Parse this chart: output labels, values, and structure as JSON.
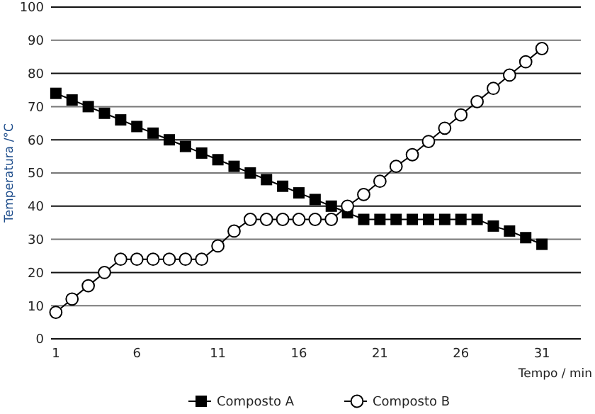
{
  "chart_data": {
    "type": "line",
    "xlabel": "Tempo / min",
    "ylabel": "Temperatura /°C",
    "x": [
      1,
      2,
      3,
      4,
      5,
      6,
      7,
      8,
      9,
      10,
      11,
      12,
      13,
      14,
      15,
      16,
      17,
      18,
      19,
      20,
      21,
      22,
      23,
      24,
      25,
      26,
      27,
      28,
      29,
      30,
      31
    ],
    "series": [
      {
        "name": "Composto A",
        "color": "#000000",
        "marker": "square",
        "values": [
          74,
          72,
          70,
          68,
          66,
          64,
          62,
          60,
          58,
          56,
          54,
          52,
          50,
          48,
          46,
          44,
          42,
          40,
          38,
          36,
          36,
          36,
          36,
          36,
          36,
          36,
          36,
          34,
          32.5,
          30.5,
          28.5
        ]
      },
      {
        "name": "Composto B",
        "color": "#000000",
        "marker": "circle",
        "values": [
          8,
          12,
          16,
          20,
          24,
          24,
          24,
          24,
          24,
          24,
          28,
          32.5,
          36,
          36,
          36,
          36,
          36,
          36,
          40,
          43.5,
          47.5,
          52,
          55.5,
          59.5,
          63.5,
          67.5,
          71.5,
          75.5,
          79.5,
          83.5,
          87.5
        ]
      }
    ],
    "xlim": [
      0.7,
      33.4
    ],
    "xticks": [
      1,
      6,
      11,
      16,
      21,
      26,
      31
    ],
    "ylim": [
      0,
      100
    ],
    "yticks": [
      0,
      10,
      20,
      30,
      40,
      50,
      60,
      70,
      80,
      90,
      100
    ],
    "grid": "y",
    "legend": "bottom",
    "line_style": "solid"
  }
}
